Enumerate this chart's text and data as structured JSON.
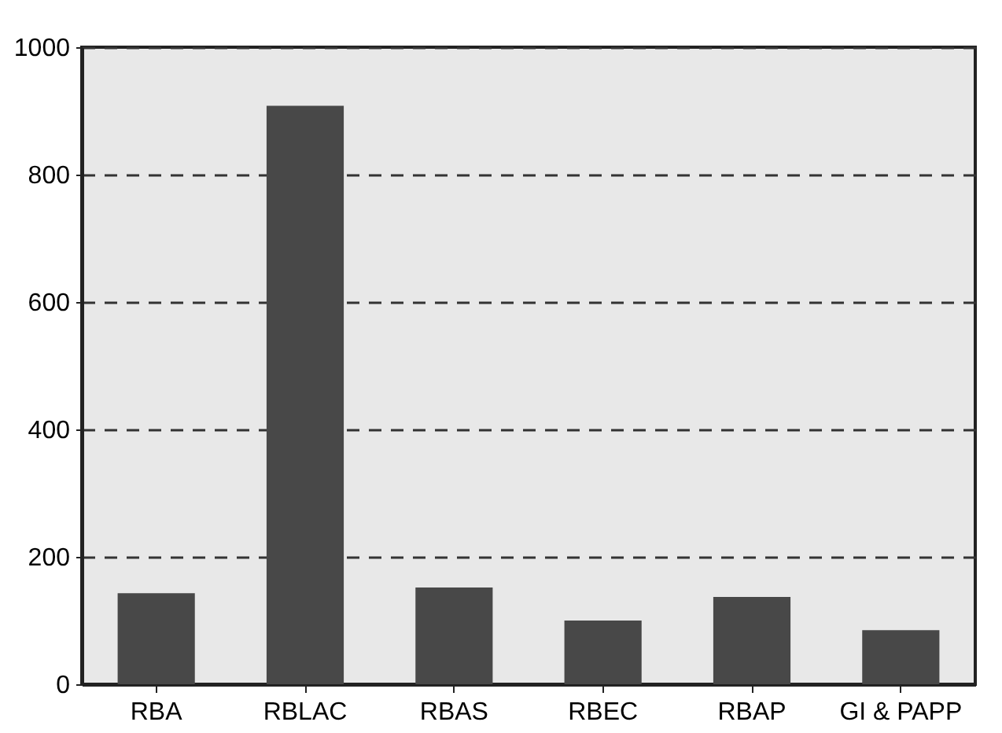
{
  "chart_data": {
    "type": "bar",
    "categories": [
      "RBA",
      "RBLAC",
      "RBAS",
      "RBEC",
      "RBAP",
      "GI & PAPP"
    ],
    "values": [
      143,
      908,
      152,
      100,
      137,
      85
    ],
    "color": "#484848",
    "ylim": [
      0,
      1000
    ],
    "yticks": [
      0,
      200,
      400,
      600,
      800,
      1000
    ],
    "grid": "y"
  }
}
